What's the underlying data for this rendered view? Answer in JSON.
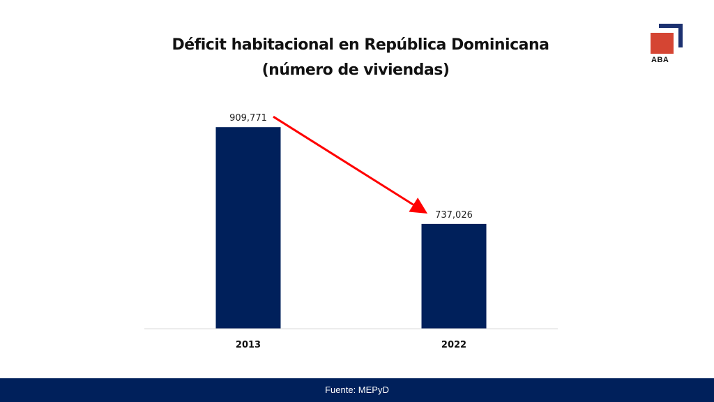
{
  "header": {
    "title_line1": "Déficit habitacional en República Dominicana",
    "title_line2": "(número de viviendas)"
  },
  "logo": {
    "text": "ABA",
    "colors": {
      "blue": "#1c3170",
      "red": "#d54533"
    }
  },
  "footer": {
    "source": "Fuente: MEPyD",
    "background": "#00205b"
  },
  "chart_data": {
    "type": "bar",
    "title": "Déficit habitacional en República Dominicana (número de viviendas)",
    "categories": [
      "2013",
      "2022"
    ],
    "values": [
      909771,
      737026
    ],
    "data_labels": [
      "909,771",
      "737,026"
    ],
    "xlabel": "",
    "ylabel": "",
    "ylim": [
      550000,
      910000
    ],
    "grid": false,
    "legend": "none",
    "bar_color": "#00205b",
    "annotations": [
      {
        "type": "arrow",
        "from": "2013",
        "to": "2022",
        "color": "#ff0000",
        "meaning": "decrease"
      }
    ]
  }
}
